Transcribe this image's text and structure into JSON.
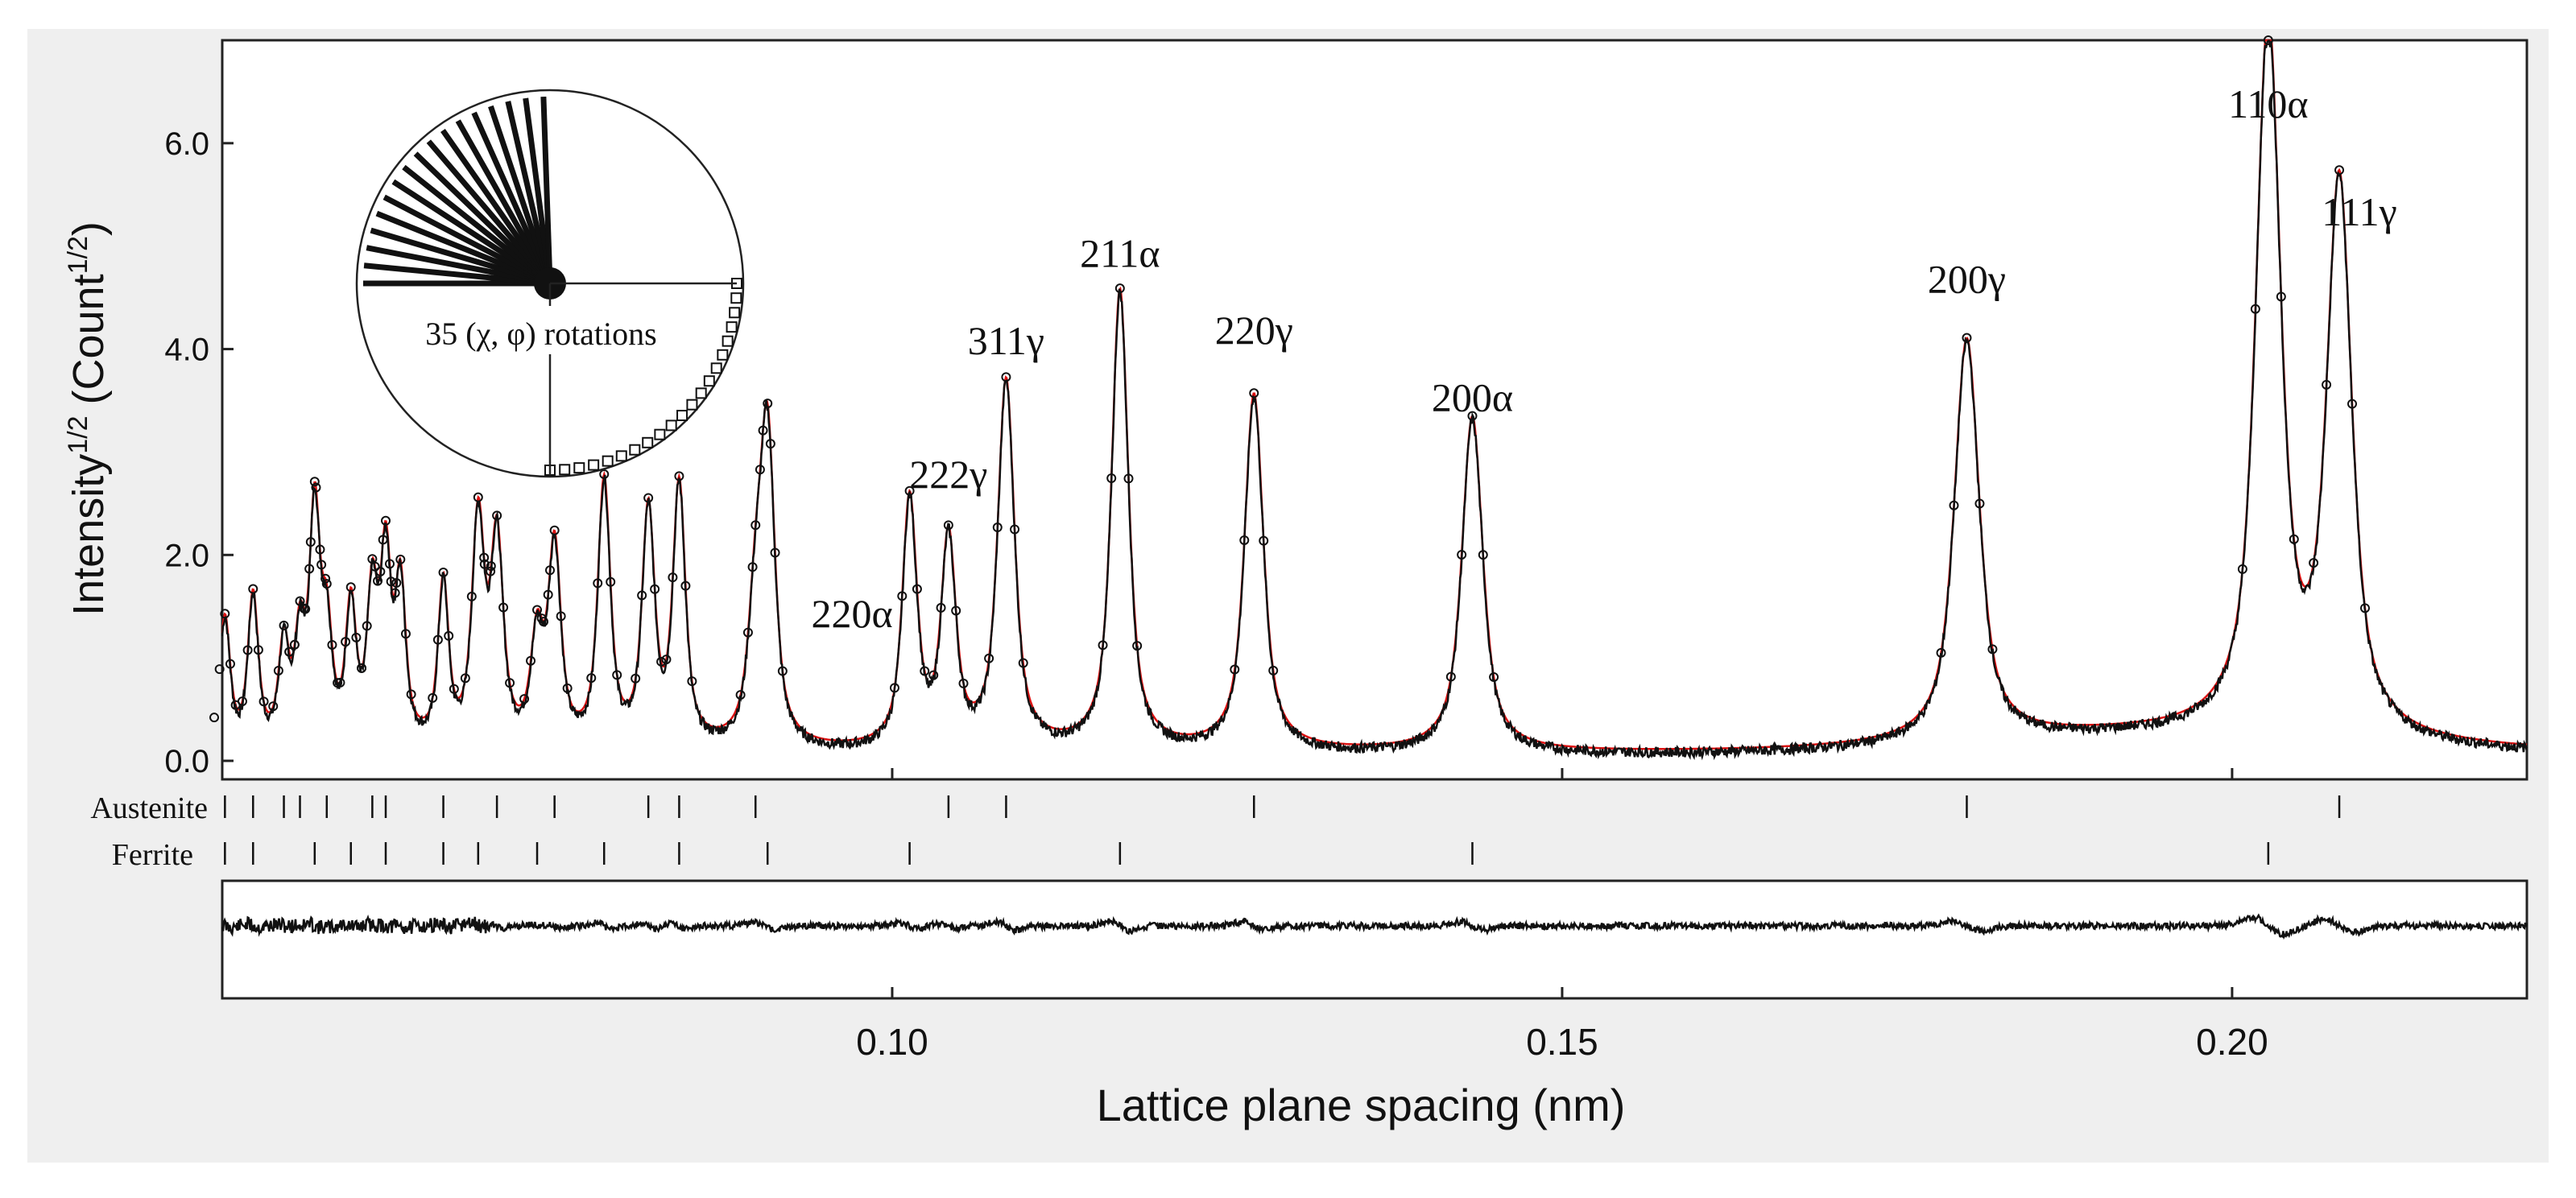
{
  "chart_data": {
    "type": "line",
    "xlabel": "Lattice plane spacing (nm)",
    "ylabel_main": "Intensity",
    "ylabel_sup": "1/2",
    "ylabel_unit": "(Count",
    "ylabel_unit_sup": "1/2",
    "ylabel_close": ")",
    "xlim": [
      0.05,
      0.222
    ],
    "ylim": [
      0.0,
      7.0
    ],
    "xticks": [
      {
        "value": 0.1,
        "label": "0.10"
      },
      {
        "value": 0.15,
        "label": "0.15"
      },
      {
        "value": 0.2,
        "label": "0.20"
      }
    ],
    "yticks": [
      {
        "value": 0.0,
        "label": "0.0"
      },
      {
        "value": 2.0,
        "label": "2.0"
      },
      {
        "value": 4.0,
        "label": "4.0"
      },
      {
        "value": 6.0,
        "label": "6.0"
      }
    ],
    "colors": {
      "fit": "#dd1111",
      "observed": "#111111",
      "panel": "#efefef",
      "frame": "#222222"
    },
    "background_level": 0.08,
    "peaks": [
      {
        "d": 0.0502,
        "h": 1.25,
        "w": 0.0005
      },
      {
        "d": 0.0523,
        "h": 1.45,
        "w": 0.0005
      },
      {
        "d": 0.0546,
        "h": 0.95,
        "w": 0.0005
      },
      {
        "d": 0.0558,
        "h": 0.98,
        "w": 0.0005
      },
      {
        "d": 0.0569,
        "h": 2.2,
        "w": 0.0005
      },
      {
        "d": 0.0578,
        "h": 1.05,
        "w": 0.0005
      },
      {
        "d": 0.0596,
        "h": 1.3,
        "w": 0.0005
      },
      {
        "d": 0.0612,
        "h": 1.4,
        "w": 0.0005
      },
      {
        "d": 0.0622,
        "h": 1.75,
        "w": 0.0005
      },
      {
        "d": 0.0633,
        "h": 1.5,
        "w": 0.0005
      },
      {
        "d": 0.0665,
        "h": 1.55,
        "w": 0.0005
      },
      {
        "d": 0.0691,
        "h": 2.15,
        "w": 0.0006
      },
      {
        "d": 0.0705,
        "h": 1.95,
        "w": 0.0006
      },
      {
        "d": 0.0735,
        "h": 1.0,
        "w": 0.0006
      },
      {
        "d": 0.0748,
        "h": 1.9,
        "w": 0.0006
      },
      {
        "d": 0.0785,
        "h": 2.55,
        "w": 0.0006
      },
      {
        "d": 0.0818,
        "h": 2.25,
        "w": 0.0006
      },
      {
        "d": 0.0841,
        "h": 2.5,
        "w": 0.0006
      },
      {
        "d": 0.0898,
        "h": 1.2,
        "w": 0.0007
      },
      {
        "d": 0.0907,
        "h": 2.95,
        "w": 0.0007
      },
      {
        "d": 0.1013,
        "h": 2.4,
        "w": 0.0007
      },
      {
        "d": 0.1042,
        "h": 2.0,
        "w": 0.0007
      },
      {
        "d": 0.1085,
        "h": 3.55,
        "w": 0.0008
      },
      {
        "d": 0.117,
        "h": 4.45,
        "w": 0.0008
      },
      {
        "d": 0.127,
        "h": 3.45,
        "w": 0.0009
      },
      {
        "d": 0.1433,
        "h": 3.25,
        "w": 0.001
      },
      {
        "d": 0.1802,
        "h": 3.9,
        "w": 0.0012
      },
      {
        "d": 0.2027,
        "h": 6.85,
        "w": 0.0012
      },
      {
        "d": 0.208,
        "h": 5.3,
        "w": 0.0012
      }
    ],
    "peak_labels": [
      {
        "text": "110α",
        "x": 0.2027,
        "y": 6.25
      },
      {
        "text": "111γ",
        "x": 0.2095,
        "y": 5.2
      },
      {
        "text": "211α",
        "x": 0.117,
        "y": 4.8
      },
      {
        "text": "200γ",
        "x": 0.1802,
        "y": 4.55
      },
      {
        "text": "311γ",
        "x": 0.1085,
        "y": 3.95
      },
      {
        "text": "220γ",
        "x": 0.127,
        "y": 4.05
      },
      {
        "text": "200α",
        "x": 0.1433,
        "y": 3.4
      },
      {
        "text": "222γ",
        "x": 0.1042,
        "y": 2.65
      },
      {
        "text": "220α",
        "x": 0.097,
        "y": 1.3
      }
    ],
    "austenite_ticks": [
      0.0502,
      0.0523,
      0.0546,
      0.0558,
      0.0578,
      0.0612,
      0.0622,
      0.0665,
      0.0705,
      0.0748,
      0.0818,
      0.0841,
      0.0898,
      0.1042,
      0.1085,
      0.127,
      0.1802,
      0.208
    ],
    "ferrite_ticks": [
      0.0502,
      0.0523,
      0.0569,
      0.0596,
      0.0622,
      0.0665,
      0.0691,
      0.0735,
      0.0785,
      0.0841,
      0.0907,
      0.1013,
      0.117,
      0.1433,
      0.2027
    ],
    "phases": [
      "Austenite",
      "Ferrite"
    ],
    "inset_label": "35 (χ, φ) rotations"
  }
}
